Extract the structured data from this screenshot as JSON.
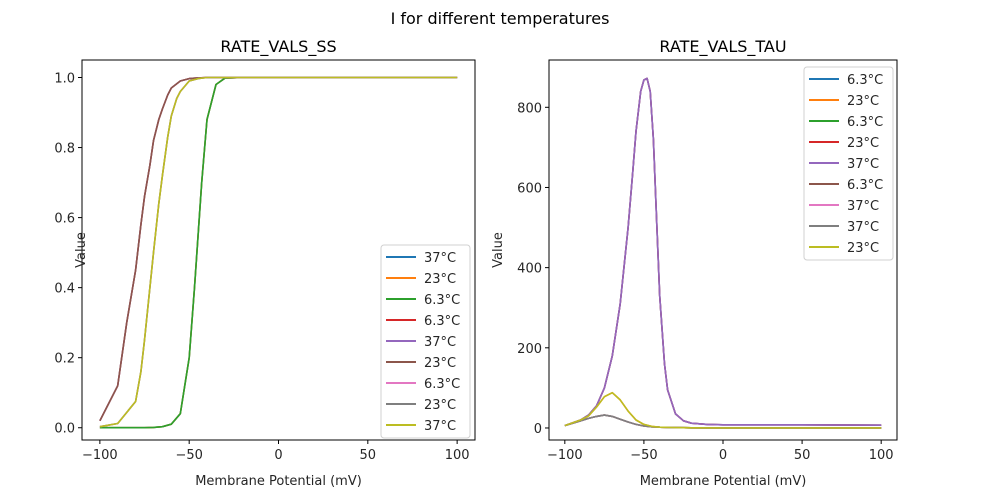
{
  "figure": {
    "suptitle": "I for different temperatures"
  },
  "chart_data": [
    {
      "type": "line",
      "title": "RATE_VALS_SS",
      "xlabel": "Membrane Potential (mV)",
      "ylabel": "Value",
      "xlim": [
        -110,
        110
      ],
      "ylim": [
        -0.035,
        1.05
      ],
      "xticks": [
        -100,
        -50,
        0,
        50,
        100
      ],
      "xtick_labels": [
        "−100",
        "−50",
        "0",
        "50",
        "100"
      ],
      "yticks": [
        0.0,
        0.2,
        0.4,
        0.6,
        0.8,
        1.0
      ],
      "ytick_labels": [
        "0.0",
        "0.2",
        "0.4",
        "0.6",
        "0.8",
        "1.0"
      ],
      "grid": false,
      "legend_position": "lower-right",
      "series": [
        {
          "name": "37°C",
          "color": "#1f77b4",
          "x": [
            -100,
            -90,
            -80,
            -75,
            -70,
            -65,
            -60,
            -55,
            -50,
            -47,
            -45,
            -43,
            -40,
            -35,
            -30,
            -20,
            0,
            100
          ],
          "y": [
            0,
            0,
            0,
            0,
            0.001,
            0.003,
            0.01,
            0.04,
            0.2,
            0.4,
            0.55,
            0.7,
            0.88,
            0.98,
            0.998,
            1,
            1,
            1
          ]
        },
        {
          "name": "23°C",
          "color": "#ff7f0e",
          "x": [
            -100,
            -90,
            -80,
            -75,
            -70,
            -65,
            -60,
            -55,
            -50,
            -47,
            -45,
            -43,
            -40,
            -35,
            -30,
            -20,
            0,
            100
          ],
          "y": [
            0,
            0,
            0,
            0,
            0.001,
            0.003,
            0.01,
            0.04,
            0.2,
            0.4,
            0.55,
            0.7,
            0.88,
            0.98,
            0.998,
            1,
            1,
            1
          ]
        },
        {
          "name": "6.3°C",
          "color": "#2ca02c",
          "x": [
            -100,
            -90,
            -80,
            -75,
            -70,
            -65,
            -60,
            -55,
            -50,
            -47,
            -45,
            -43,
            -40,
            -35,
            -30,
            -20,
            0,
            100
          ],
          "y": [
            0,
            0,
            0,
            0,
            0.001,
            0.003,
            0.01,
            0.04,
            0.2,
            0.4,
            0.55,
            0.7,
            0.88,
            0.98,
            0.998,
            1,
            1,
            1
          ]
        },
        {
          "name": "6.3°C",
          "color": "#d62728",
          "x": [
            -100,
            -90,
            -85,
            -80,
            -77,
            -75,
            -72,
            -70,
            -67,
            -65,
            -62,
            -60,
            -55,
            -50,
            -45,
            -40,
            -30,
            0,
            100
          ],
          "y": [
            0.02,
            0.12,
            0.3,
            0.45,
            0.58,
            0.66,
            0.75,
            0.82,
            0.88,
            0.91,
            0.95,
            0.97,
            0.99,
            0.997,
            0.999,
            1,
            1,
            1,
            1
          ]
        },
        {
          "name": "37°C",
          "color": "#9467bd",
          "x": [
            -100,
            -90,
            -85,
            -80,
            -77,
            -75,
            -72,
            -70,
            -67,
            -65,
            -62,
            -60,
            -55,
            -50,
            -45,
            -40,
            -30,
            0,
            100
          ],
          "y": [
            0.02,
            0.12,
            0.3,
            0.45,
            0.58,
            0.66,
            0.75,
            0.82,
            0.88,
            0.91,
            0.95,
            0.97,
            0.99,
            0.997,
            0.999,
            1,
            1,
            1,
            1
          ]
        },
        {
          "name": "23°C",
          "color": "#8c564b",
          "x": [
            -100,
            -90,
            -85,
            -80,
            -77,
            -75,
            -72,
            -70,
            -67,
            -65,
            -62,
            -60,
            -55,
            -50,
            -45,
            -40,
            -30,
            0,
            100
          ],
          "y": [
            0.02,
            0.12,
            0.3,
            0.45,
            0.58,
            0.66,
            0.75,
            0.82,
            0.88,
            0.91,
            0.95,
            0.97,
            0.99,
            0.997,
            0.999,
            1,
            1,
            1,
            1
          ]
        },
        {
          "name": "6.3°C",
          "color": "#e377c2",
          "x": [
            -100,
            -90,
            -80,
            -77,
            -75,
            -72,
            -70,
            -67,
            -65,
            -62,
            -60,
            -57,
            -55,
            -50,
            -45,
            -40,
            -30,
            0,
            100
          ],
          "y": [
            0.003,
            0.012,
            0.075,
            0.16,
            0.25,
            0.4,
            0.5,
            0.64,
            0.72,
            0.83,
            0.89,
            0.94,
            0.96,
            0.99,
            0.997,
            1,
            1,
            1,
            1
          ]
        },
        {
          "name": "23°C",
          "color": "#7f7f7f",
          "x": [
            -100,
            -90,
            -80,
            -77,
            -75,
            -72,
            -70,
            -67,
            -65,
            -62,
            -60,
            -57,
            -55,
            -50,
            -45,
            -40,
            -30,
            0,
            100
          ],
          "y": [
            0.003,
            0.012,
            0.075,
            0.16,
            0.25,
            0.4,
            0.5,
            0.64,
            0.72,
            0.83,
            0.89,
            0.94,
            0.96,
            0.99,
            0.997,
            1,
            1,
            1,
            1
          ]
        },
        {
          "name": "37°C",
          "color": "#bcbd22",
          "x": [
            -100,
            -90,
            -80,
            -77,
            -75,
            -72,
            -70,
            -67,
            -65,
            -62,
            -60,
            -57,
            -55,
            -50,
            -45,
            -40,
            -30,
            0,
            100
          ],
          "y": [
            0.003,
            0.012,
            0.075,
            0.16,
            0.25,
            0.4,
            0.5,
            0.64,
            0.72,
            0.83,
            0.89,
            0.94,
            0.96,
            0.99,
            0.997,
            1,
            1,
            1,
            1
          ]
        }
      ]
    },
    {
      "type": "line",
      "title": "RATE_VALS_TAU",
      "xlabel": "Membrane Potential (mV)",
      "ylabel": "Value",
      "xlim": [
        -110,
        110
      ],
      "ylim": [
        -30,
        918
      ],
      "xticks": [
        -100,
        -50,
        0,
        50,
        100
      ],
      "xtick_labels": [
        "−100",
        "−50",
        "0",
        "50",
        "100"
      ],
      "yticks": [
        0,
        200,
        400,
        600,
        800
      ],
      "ytick_labels": [
        "0",
        "200",
        "400",
        "600",
        "800"
      ],
      "grid": false,
      "legend_position": "upper-right",
      "series": [
        {
          "name": "6.3°C",
          "color": "#1f77b4",
          "x": [
            -100,
            -90,
            -85,
            -80,
            -75,
            -70,
            -65,
            -60,
            -57,
            -55,
            -52,
            -50,
            -48,
            -46,
            -44,
            -42,
            -40,
            -37,
            -35,
            -30,
            -25,
            -20,
            -10,
            0,
            50,
            100
          ],
          "y": [
            6,
            20,
            32,
            55,
            100,
            180,
            310,
            500,
            640,
            740,
            840,
            868,
            872,
            840,
            720,
            520,
            330,
            160,
            95,
            35,
            18,
            12,
            9,
            8,
            8,
            7
          ]
        },
        {
          "name": "23°C",
          "color": "#ff7f0e",
          "x": [
            -100,
            -90,
            -85,
            -80,
            -75,
            -70,
            -65,
            -60,
            -55,
            -50,
            -45,
            -40,
            -30,
            -20,
            0,
            100
          ],
          "y": [
            6,
            20,
            30,
            52,
            78,
            88,
            70,
            42,
            20,
            9,
            4,
            2,
            1,
            0.5,
            0.2,
            0.1
          ]
        },
        {
          "name": "6.3°C",
          "color": "#2ca02c",
          "x": [
            -100,
            -90,
            -85,
            -80,
            -75,
            -70,
            -65,
            -60,
            -55,
            -50,
            -45,
            -40,
            -30,
            -20,
            0,
            100
          ],
          "y": [
            6,
            18,
            24,
            29,
            32,
            29,
            22,
            15,
            9,
            5,
            3,
            2,
            1,
            0.5,
            0.2,
            0.1
          ]
        },
        {
          "name": "23°C",
          "color": "#d62728",
          "x": [
            -100,
            -90,
            -85,
            -80,
            -75,
            -70,
            -65,
            -60,
            -57,
            -55,
            -52,
            -50,
            -48,
            -46,
            -44,
            -42,
            -40,
            -37,
            -35,
            -30,
            -25,
            -20,
            -10,
            0,
            50,
            100
          ],
          "y": [
            6,
            20,
            32,
            55,
            100,
            180,
            310,
            500,
            640,
            740,
            840,
            868,
            872,
            840,
            720,
            520,
            330,
            160,
            95,
            35,
            18,
            12,
            9,
            8,
            8,
            7
          ]
        },
        {
          "name": "37°C",
          "color": "#9467bd",
          "x": [
            -100,
            -90,
            -85,
            -80,
            -75,
            -70,
            -65,
            -60,
            -57,
            -55,
            -52,
            -50,
            -48,
            -46,
            -44,
            -42,
            -40,
            -37,
            -35,
            -30,
            -25,
            -20,
            -10,
            0,
            50,
            100
          ],
          "y": [
            6,
            20,
            32,
            55,
            100,
            180,
            310,
            500,
            640,
            740,
            840,
            868,
            872,
            840,
            720,
            520,
            330,
            160,
            95,
            35,
            18,
            12,
            9,
            8,
            8,
            7
          ]
        },
        {
          "name": "6.3°C",
          "color": "#8c564b",
          "x": [
            -100,
            -90,
            -85,
            -80,
            -75,
            -70,
            -65,
            -60,
            -55,
            -50,
            -45,
            -40,
            -30,
            -20,
            0,
            100
          ],
          "y": [
            6,
            18,
            24,
            29,
            32,
            29,
            22,
            15,
            9,
            5,
            3,
            2,
            1,
            0.5,
            0.2,
            0.1
          ]
        },
        {
          "name": "37°C",
          "color": "#e377c2",
          "x": [
            -100,
            -90,
            -85,
            -80,
            -75,
            -70,
            -65,
            -60,
            -55,
            -50,
            -45,
            -40,
            -30,
            -20,
            0,
            100
          ],
          "y": [
            6,
            18,
            24,
            29,
            32,
            29,
            22,
            15,
            9,
            5,
            3,
            2,
            1,
            0.5,
            0.2,
            0.1
          ]
        },
        {
          "name": "37°C",
          "color": "#7f7f7f",
          "x": [
            -100,
            -90,
            -85,
            -80,
            -75,
            -70,
            -65,
            -60,
            -55,
            -50,
            -45,
            -40,
            -30,
            -20,
            0,
            100
          ],
          "y": [
            6,
            18,
            24,
            29,
            32,
            29,
            22,
            15,
            9,
            5,
            3,
            2,
            1,
            0.5,
            0.2,
            0.1
          ]
        },
        {
          "name": "23°C",
          "color": "#bcbd22",
          "x": [
            -100,
            -90,
            -85,
            -80,
            -75,
            -70,
            -65,
            -60,
            -55,
            -50,
            -45,
            -40,
            -30,
            -20,
            0,
            100
          ],
          "y": [
            6,
            20,
            30,
            52,
            78,
            88,
            70,
            42,
            20,
            9,
            4,
            2,
            1,
            0.5,
            0.2,
            0.1
          ]
        }
      ]
    }
  ]
}
